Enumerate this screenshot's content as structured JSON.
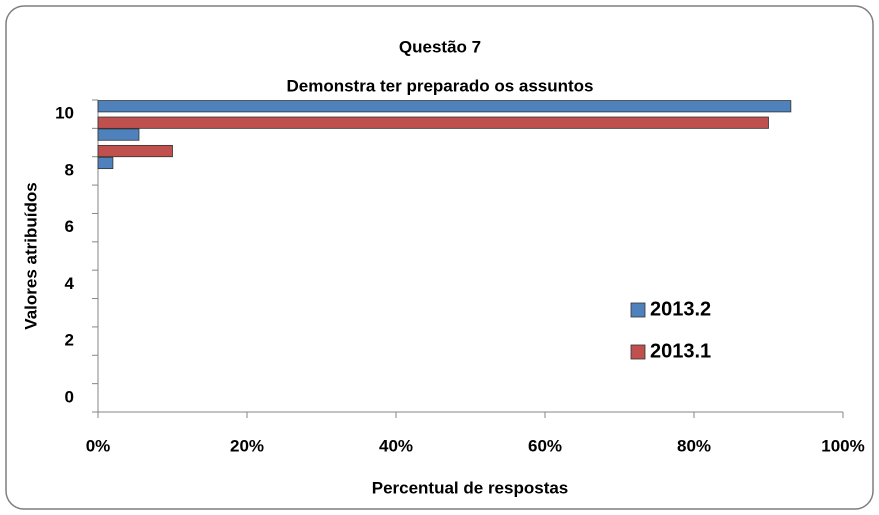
{
  "chart_data": {
    "type": "barh",
    "title": [
      "Questão  7",
      "Demonstra ter preparado os assuntos"
    ],
    "ylabel": "Valores atribuídos",
    "xlabel": "Percentual de respostas",
    "categories": [
      "0",
      null,
      "2",
      null,
      "4",
      null,
      "6",
      null,
      "8",
      null,
      "10"
    ],
    "series": [
      {
        "name": "2013.2",
        "color": "#4f81bd",
        "values": [
          0,
          0,
          0,
          0,
          0,
          0,
          0,
          0,
          2,
          5.5,
          93
        ]
      },
      {
        "name": "2013.1",
        "color": "#c0504d",
        "values": [
          0,
          0,
          0,
          0,
          0,
          0,
          0,
          0,
          0,
          10,
          90
        ]
      }
    ],
    "xlim": [
      0,
      100
    ],
    "xticks": [
      {
        "value": 0,
        "label": "0%"
      },
      {
        "value": 20,
        "label": "20%"
      },
      {
        "value": 40,
        "label": "40%"
      },
      {
        "value": 60,
        "label": "60%"
      },
      {
        "value": 80,
        "label": "80%"
      },
      {
        "value": 100,
        "label": "100%"
      }
    ],
    "legend": "lower right"
  }
}
